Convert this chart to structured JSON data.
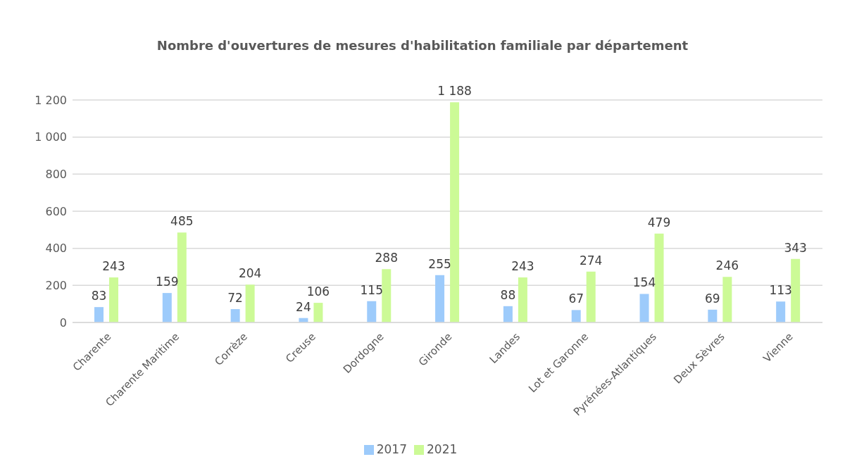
{
  "chart_data": {
    "type": "bar",
    "title": "Nombre d'ouvertures de mesures d'habilitation  familiale par département",
    "categories": [
      "Charente",
      "Charente Maritime",
      "Corrèze",
      "Creuse",
      "Dordogne",
      "Gironde",
      "Landes",
      "Lot et Garonne",
      "Pyrénées-Atlantiques",
      "Deux Sèvres",
      "Vienne"
    ],
    "series": [
      {
        "name": "2017",
        "color": "#9dcbfb",
        "values": [
          83,
          159,
          72,
          24,
          115,
          255,
          88,
          67,
          154,
          69,
          113
        ],
        "value_labels": [
          "83",
          "159",
          "72",
          "24",
          "115",
          "255",
          "88",
          "67",
          "154",
          "69",
          "113"
        ]
      },
      {
        "name": "2021",
        "color": "#ccfa96",
        "values": [
          243,
          485,
          204,
          106,
          288,
          1188,
          243,
          274,
          479,
          246,
          343
        ],
        "value_labels": [
          "243",
          "485",
          "204",
          "106",
          "288",
          "1 188",
          "243",
          "274",
          "479",
          "246",
          "343"
        ]
      }
    ],
    "ylim": [
      0,
      1200
    ],
    "yticks": [
      0,
      200,
      400,
      600,
      800,
      {
        "value": 1000,
        "label": "1 000"
      },
      {
        "value": 1200,
        "label": "1 200"
      }
    ],
    "grid": "y",
    "legend": "bottom"
  }
}
